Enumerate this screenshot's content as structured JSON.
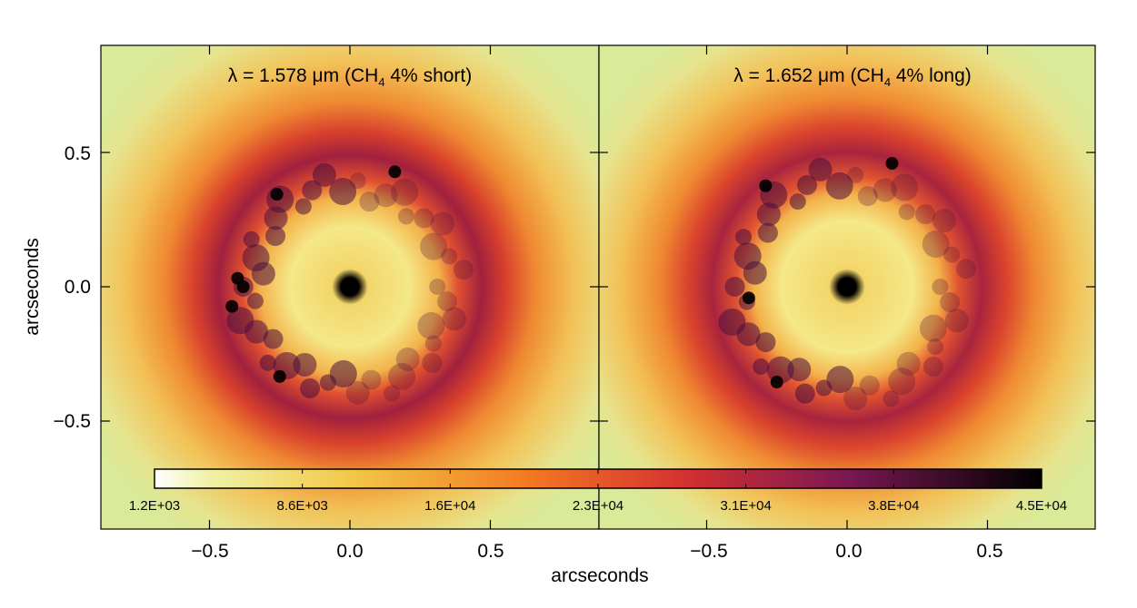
{
  "chart_data": [
    {
      "type": "heatmap",
      "title": "λ = 1.578 μm (CH4 4% short)",
      "title_parts": {
        "lambda": "λ = 1.578 μm (CH",
        "sub": "4",
        "rest": " 4% short)"
      },
      "xlabel": "arcseconds",
      "ylabel": "arcseconds",
      "xlim": [
        -0.86,
        0.86
      ],
      "ylim": [
        -0.9,
        0.9
      ],
      "xticks": [
        "−0.5",
        "0.0",
        "0.5"
      ],
      "xtick_values": [
        -0.5,
        0.0,
        0.5
      ],
      "yticks": [
        "0.5",
        "0.0",
        "−0.5"
      ],
      "ytick_values": [
        0.5,
        0.0,
        -0.5
      ],
      "features": {
        "central_peak": [
          0.0,
          0.0
        ],
        "ring_radius": 0.36,
        "bright_speckles": [
          [
            -0.26,
            0.33
          ],
          [
            0.16,
            0.41
          ],
          [
            -0.38,
            0.0
          ],
          [
            -0.42,
            -0.07
          ],
          [
            -0.25,
            -0.32
          ],
          [
            -0.4,
            0.03
          ]
        ]
      }
    },
    {
      "type": "heatmap",
      "title": "λ = 1.652 μm (CH4 4% long)",
      "title_parts": {
        "lambda": "λ = 1.652 μm (CH",
        "sub": "4",
        "rest": " 4% long)"
      },
      "xlabel": "arcseconds",
      "xlim": [
        -0.86,
        0.86
      ],
      "ylim": [
        -0.9,
        0.9
      ],
      "xticks": [
        "−0.5",
        "0.0",
        "0.5"
      ],
      "xtick_values": [
        -0.5,
        0.0,
        0.5
      ],
      "features": {
        "central_peak": [
          0.0,
          0.0
        ],
        "ring_radius": 0.38,
        "bright_speckles": [
          [
            -0.29,
            0.36
          ],
          [
            0.16,
            0.44
          ],
          [
            -0.35,
            -0.04
          ],
          [
            -0.25,
            -0.34
          ]
        ]
      }
    }
  ],
  "colorbar": {
    "ticks": [
      "1.2E+03",
      "8.6E+03",
      "1.6E+04",
      "2.3E+04",
      "3.1E+04",
      "3.8E+04",
      "4.5E+04"
    ],
    "min": 1200,
    "max": 45000,
    "colors": [
      "#ffffff",
      "#eef0a0",
      "#f0c040",
      "#f07020",
      "#c81e3c",
      "#6e1450",
      "#000000"
    ]
  },
  "shared_xlabel": "arcseconds"
}
